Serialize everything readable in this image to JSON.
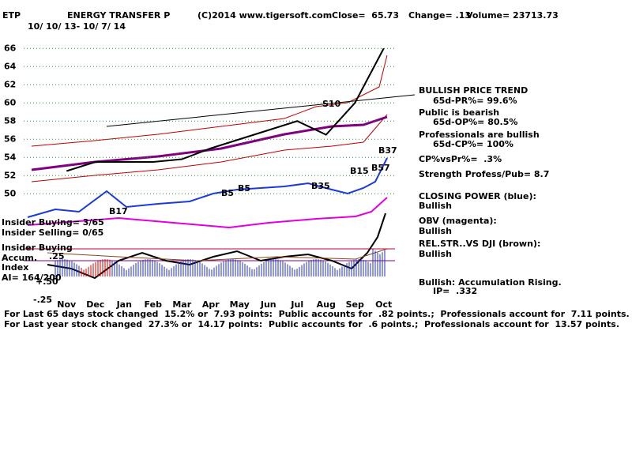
{
  "chart_data": {
    "type": "line",
    "header": {
      "symbol": "ETP",
      "name": "ENERGY TRANSFER P",
      "source": "(C)2014 www.tigersoft.com",
      "close": "Close=  65.73",
      "change": "Change= .13",
      "volume": "Volume= 23713.73",
      "dates": "10/ 10/ 13- 10/ 7/ 14"
    },
    "categories": [
      "Nov",
      "Dec",
      "Jan",
      "Feb",
      "Mar",
      "Apr",
      "May",
      "Jun",
      "Jul",
      "Aug",
      "Sep",
      "Oct"
    ],
    "series": [
      {
        "color": "#000000",
        "values": [
          52.5,
          53.5,
          53.5,
          53.5,
          53.8,
          55,
          56,
          57,
          58,
          56.5,
          60,
          66
        ]
      }
    ],
    "ylim": [
      49.5,
      67.5
    ],
    "yticks": [
      50,
      52,
      54,
      56,
      58,
      60,
      62,
      64,
      66
    ],
    "grid": true,
    "signals": [
      "B17",
      "B5",
      "B5",
      "B35",
      "S10",
      "B15",
      "B57",
      "B37"
    ],
    "left_notes": [
      "Insider Buying= 3/65",
      "Insider Selling= 0/65",
      "Insider Buying",
      "Accum.",
      "Index",
      "AI= 164/200"
    ],
    "lower_axis_labels": [
      "+.50",
      ".25",
      "-.25"
    ],
    "right_notes": [
      "BULLISH PRICE TREND",
      "65d-PR%= 99.6%",
      "Public is bearish",
      "65d-OP%= 80.5%",
      "Professionals are bullish",
      "65d-CP%= 100%",
      "CP%vsPr%=  .3%",
      "Strength Profess/Pub= 8.7",
      "CLOSING POWER (blue):",
      "Bullish",
      "OBV (magenta):",
      "Bullish",
      "REL.STR..VS DJI (brown):",
      "Bullish",
      "Bullish: Accumulation Rising.",
      "IP=  .332"
    ],
    "footer": [
      "For Last 65 days stock changed  15.2% or  7.93 points:  Public accounts for  .82 points.;  Professionals account for  7.11 points.",
      "For Last year stock changed  27.3% or  14.17 points:  Public accounts for  .6 points.;  Professionals account for  13.57 points."
    ]
  }
}
